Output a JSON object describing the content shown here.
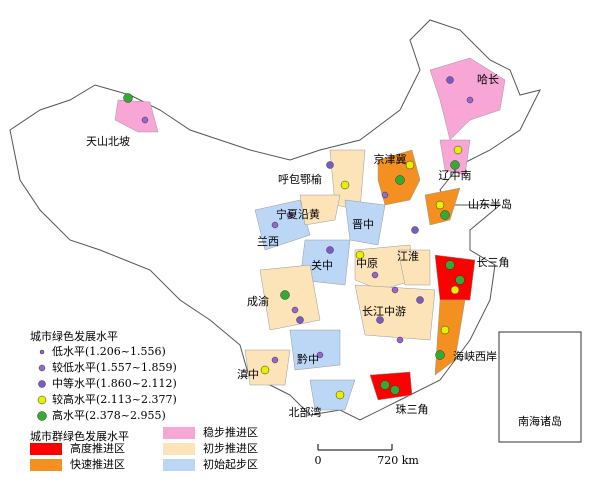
{
  "regions": [
    {
      "label": "天山北坡"
    },
    {
      "label": "哈长"
    },
    {
      "label": "京津冀"
    },
    {
      "label": "呼包鄂榆"
    },
    {
      "label": "辽中南"
    },
    {
      "label": "宁夏沿黄"
    },
    {
      "label": "山东半岛"
    },
    {
      "label": "晋中"
    },
    {
      "label": "兰西"
    },
    {
      "label": "关中"
    },
    {
      "label": "中原"
    },
    {
      "label": "江淮"
    },
    {
      "label": "长三角"
    },
    {
      "label": "成渝"
    },
    {
      "label": "长江中游"
    },
    {
      "label": "黔中"
    },
    {
      "label": "海峡西岸"
    },
    {
      "label": "滇中"
    },
    {
      "label": "北部湾"
    },
    {
      "label": "珠三角"
    }
  ],
  "inset": {
    "label": "南海诸岛"
  },
  "legend": {
    "city_title": "城市绿色发展水平",
    "city_levels": [
      "低水平(1.206~1.556)",
      "较低水平(1.557~1.859)",
      "中等水平(1.860~2.112)",
      "较高水平(2.113~2.377)",
      "高水平(2.378~2.955)"
    ],
    "cluster_title": "城市群绿色发展水平",
    "cluster_levels": [
      "高度推进区",
      "快速推进区",
      "稳步推进区",
      "初步推进区",
      "初始起步区"
    ]
  },
  "scale": {
    "start": "0",
    "end": "720 km"
  }
}
